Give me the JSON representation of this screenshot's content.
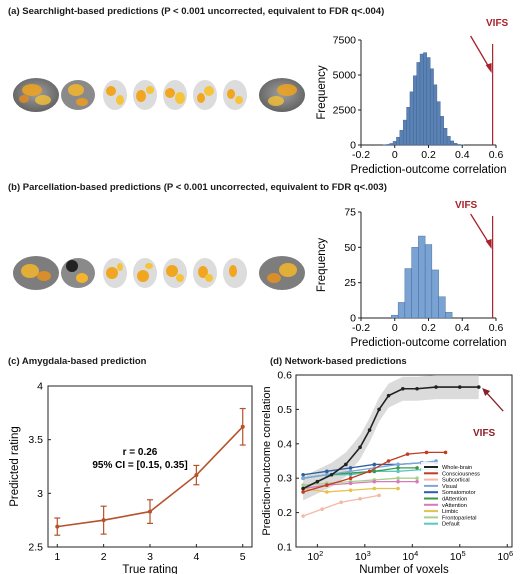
{
  "panel_a": {
    "title": "(a) Searchlight-based predictions (P < 0.001 uncorrected, equivalent to FDR q<.004)",
    "marker_label": "VIFS"
  },
  "panel_b": {
    "title": "(b) Parcellation-based predictions (P < 0.001 uncorrected, equivalent to FDR q<.003)",
    "marker_label": "VIFS"
  },
  "panel_c": {
    "title": "(c) Amygdala-based prediction"
  },
  "panel_d": {
    "title": "(d) Network-based predictions",
    "marker_label": "VIFS"
  },
  "chart_data": [
    {
      "type": "bar",
      "panel": "a",
      "xlabel": "Prediction-outcome correlation",
      "ylabel": "Frequency",
      "xlim": [
        -0.2,
        0.6
      ],
      "ylim": [
        0,
        7500
      ],
      "xticks": [
        "-0.2",
        "0",
        "0.2",
        "0.4",
        "0.6"
      ],
      "yticks": [
        "0",
        "2500",
        "5000",
        "7500"
      ],
      "bin_centers": [
        -0.06,
        -0.04,
        -0.02,
        0.0,
        0.02,
        0.04,
        0.06,
        0.08,
        0.1,
        0.12,
        0.14,
        0.16,
        0.18,
        0.2,
        0.22,
        0.24,
        0.26,
        0.28,
        0.3,
        0.32,
        0.34,
        0.36,
        0.38,
        0.4
      ],
      "values": [
        15,
        40,
        110,
        260,
        560,
        1050,
        1780,
        2700,
        3800,
        4950,
        5900,
        6500,
        6600,
        6250,
        5450,
        4300,
        3100,
        2050,
        1200,
        620,
        290,
        120,
        40,
        12
      ],
      "vifs_x": 0.58,
      "bar_color": "#5b82b4",
      "marker_color": "#a8222c"
    },
    {
      "type": "bar",
      "panel": "b",
      "xlabel": "Prediction-outcome correlation",
      "ylabel": "Frequency",
      "xlim": [
        -0.2,
        0.6
      ],
      "ylim": [
        0,
        75
      ],
      "xticks": [
        "-0.2",
        "0",
        "0.2",
        "0.4",
        "0.6"
      ],
      "yticks": [
        "0",
        "25",
        "50",
        "75"
      ],
      "bin_centers": [
        0.0,
        0.04,
        0.08,
        0.12,
        0.16,
        0.2,
        0.24,
        0.28,
        0.32
      ],
      "values": [
        2,
        11,
        35,
        50,
        58,
        52,
        34,
        15,
        4
      ],
      "vifs_x": 0.58,
      "bar_color": "#7aa3d3",
      "marker_color": "#a8222c"
    },
    {
      "type": "line",
      "panel": "c",
      "xlabel": "True rating",
      "ylabel": "Predicted rating",
      "xlim": [
        0.8,
        5.2
      ],
      "ylim": [
        2.5,
        4.0
      ],
      "xticks": [
        "1",
        "2",
        "3",
        "4",
        "5"
      ],
      "yticks": [
        "2.5",
        "3",
        "3.5",
        "4"
      ],
      "x": [
        1,
        2,
        3,
        4,
        5
      ],
      "y": [
        2.69,
        2.75,
        2.83,
        3.17,
        3.62
      ],
      "err": [
        0.08,
        0.13,
        0.11,
        0.09,
        0.17
      ],
      "annotation_r": "r = 0.26",
      "annotation_ci": "95% CI = [0.15, 0.35]",
      "color": "#b5522a"
    },
    {
      "type": "line",
      "panel": "d",
      "xlabel": "Number of voxels",
      "ylabel": "Prediction-outcome correlation",
      "x_scale": "log",
      "xlim": [
        1.55,
        6.1
      ],
      "ylim": [
        0.1,
        0.6
      ],
      "xticks": [
        {
          "base": "10",
          "exp": "2"
        },
        {
          "base": "10",
          "exp": "3"
        },
        {
          "base": "10",
          "exp": "4"
        },
        {
          "base": "10",
          "exp": "5"
        },
        {
          "base": "10",
          "exp": "6"
        }
      ],
      "yticks": [
        "0.1",
        "0.2",
        "0.3",
        "0.4",
        "0.5",
        "0.6"
      ],
      "legend_position": "right",
      "series": [
        {
          "name": "Whole-brain",
          "color": "#222222",
          "x": [
            1.7,
            2.0,
            2.3,
            2.6,
            2.9,
            3.1,
            3.3,
            3.5,
            3.8,
            4.1,
            4.5,
            5.0,
            5.4
          ],
          "y": [
            0.27,
            0.29,
            0.31,
            0.34,
            0.39,
            0.44,
            0.5,
            0.54,
            0.56,
            0.56,
            0.565,
            0.565,
            0.565
          ]
        },
        {
          "name": "Consciousness",
          "color": "#c23b22",
          "x": [
            1.7,
            2.2,
            2.7,
            3.1,
            3.5,
            3.9,
            4.3,
            4.7
          ],
          "y": [
            0.26,
            0.28,
            0.3,
            0.32,
            0.35,
            0.37,
            0.375,
            0.375
          ]
        },
        {
          "name": "Subcortical",
          "color": "#f3b9a6",
          "x": [
            1.7,
            2.1,
            2.5,
            2.9,
            3.3
          ],
          "y": [
            0.19,
            0.21,
            0.23,
            0.24,
            0.25
          ]
        },
        {
          "name": "Visual",
          "color": "#7da7d9",
          "x": [
            1.7,
            2.2,
            2.7,
            3.2,
            3.7,
            4.2,
            4.5
          ],
          "y": [
            0.3,
            0.31,
            0.32,
            0.33,
            0.34,
            0.345,
            0.35
          ]
        },
        {
          "name": "Somatomotor",
          "color": "#2f5f9e",
          "x": [
            1.7,
            2.2,
            2.7,
            3.2,
            3.7,
            4.2,
            4.5
          ],
          "y": [
            0.31,
            0.32,
            0.33,
            0.34,
            0.34,
            0.345,
            0.345
          ]
        },
        {
          "name": "dAttention",
          "color": "#3a9a4a",
          "x": [
            1.7,
            2.2,
            2.7,
            3.2,
            3.7,
            4.1
          ],
          "y": [
            0.3,
            0.31,
            0.315,
            0.32,
            0.33,
            0.33
          ]
        },
        {
          "name": "vAttention",
          "color": "#d77ab8",
          "x": [
            1.7,
            2.2,
            2.7,
            3.2,
            3.7,
            4.1
          ],
          "y": [
            0.27,
            0.28,
            0.285,
            0.29,
            0.29,
            0.29
          ]
        },
        {
          "name": "Limbic",
          "color": "#e8c14b",
          "x": [
            1.7,
            2.2,
            2.7,
            3.2,
            3.7
          ],
          "y": [
            0.27,
            0.26,
            0.265,
            0.27,
            0.27
          ]
        },
        {
          "name": "Frontoparietal",
          "color": "#a7d08c",
          "x": [
            1.7,
            2.2,
            2.7,
            3.2,
            3.7,
            4.1
          ],
          "y": [
            0.28,
            0.285,
            0.29,
            0.295,
            0.3,
            0.3
          ]
        },
        {
          "name": "Default",
          "color": "#5cc7c2",
          "x": [
            1.7,
            2.2,
            2.7,
            3.2,
            3.7,
            4.2,
            4.5
          ],
          "y": [
            0.3,
            0.31,
            0.31,
            0.32,
            0.32,
            0.325,
            0.325
          ]
        }
      ],
      "vifs_x": 5.45,
      "vifs_y": 0.565,
      "marker_color": "#8b1f28"
    }
  ]
}
